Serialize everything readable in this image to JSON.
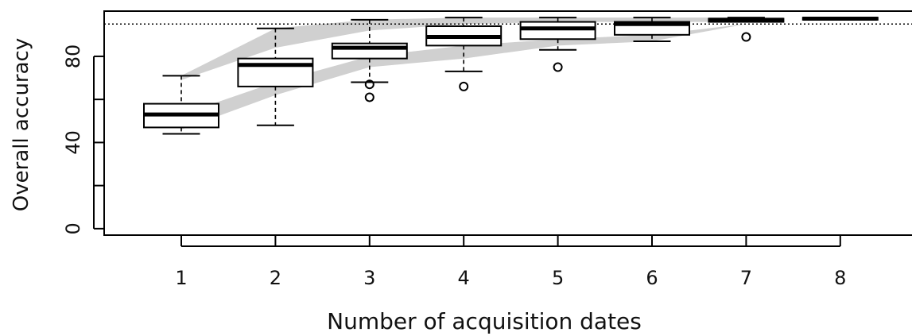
{
  "chart_data": {
    "type": "box",
    "xlabel": "Number of acquisition dates",
    "ylabel": "Overall accuracy",
    "x_categories": [
      "1",
      "2",
      "3",
      "4",
      "5",
      "6",
      "7",
      "8"
    ],
    "y_ticks": [
      0,
      40,
      80
    ],
    "y_tick_labels": [
      "0",
      "40",
      "80"
    ],
    "ylim": [
      -3,
      101
    ],
    "reference_line": {
      "y": 95,
      "style": "dotted"
    },
    "boxes": [
      {
        "x": "1",
        "whisker_low": 44,
        "q1": 47,
        "median": 53,
        "q3": 58,
        "whisker_high": 71,
        "outliers": []
      },
      {
        "x": "2",
        "whisker_low": 48,
        "q1": 66,
        "median": 76,
        "q3": 79,
        "whisker_high": 93,
        "outliers": []
      },
      {
        "x": "3",
        "whisker_low": 68,
        "q1": 79,
        "median": 84,
        "q3": 86,
        "whisker_high": 97,
        "outliers": [
          67,
          61
        ]
      },
      {
        "x": "4",
        "whisker_low": 73,
        "q1": 85,
        "median": 89,
        "q3": 94,
        "whisker_high": 98,
        "outliers": [
          66
        ]
      },
      {
        "x": "5",
        "whisker_low": 83,
        "q1": 88,
        "median": 93,
        "q3": 96,
        "whisker_high": 98,
        "outliers": [
          75
        ]
      },
      {
        "x": "6",
        "whisker_low": 87,
        "q1": 90,
        "median": 95,
        "q3": 96,
        "whisker_high": 98,
        "outliers": []
      },
      {
        "x": "7",
        "whisker_low": 96,
        "q1": 96,
        "median": 97,
        "q3": 97.5,
        "whisker_high": 98,
        "outliers": [
          89
        ]
      },
      {
        "x": "8",
        "whisker_low": 97,
        "q1": 97,
        "median": 97.5,
        "q3": 98,
        "whisker_high": 98,
        "outliers": []
      }
    ],
    "ribbons": [
      {
        "x": [
          "1",
          "2",
          "3",
          "4",
          "5",
          "6",
          "7"
        ],
        "upper": [
          71,
          93,
          97,
          98,
          98,
          98,
          98
        ],
        "lower": [
          69,
          84,
          92,
          95,
          96,
          96,
          96
        ]
      },
      {
        "x": [
          "1",
          "2",
          "3",
          "4",
          "5",
          "6",
          "7"
        ],
        "upper": [
          53,
          68,
          80,
          85,
          88,
          90,
          95
        ],
        "lower": [
          46,
          62,
          75,
          79,
          85,
          87,
          95
        ]
      }
    ],
    "grid": false,
    "legend": "none",
    "colors": {
      "ribbon": "#d0d0d0",
      "box_fill": "#ffffff",
      "stroke": "#000000"
    }
  }
}
